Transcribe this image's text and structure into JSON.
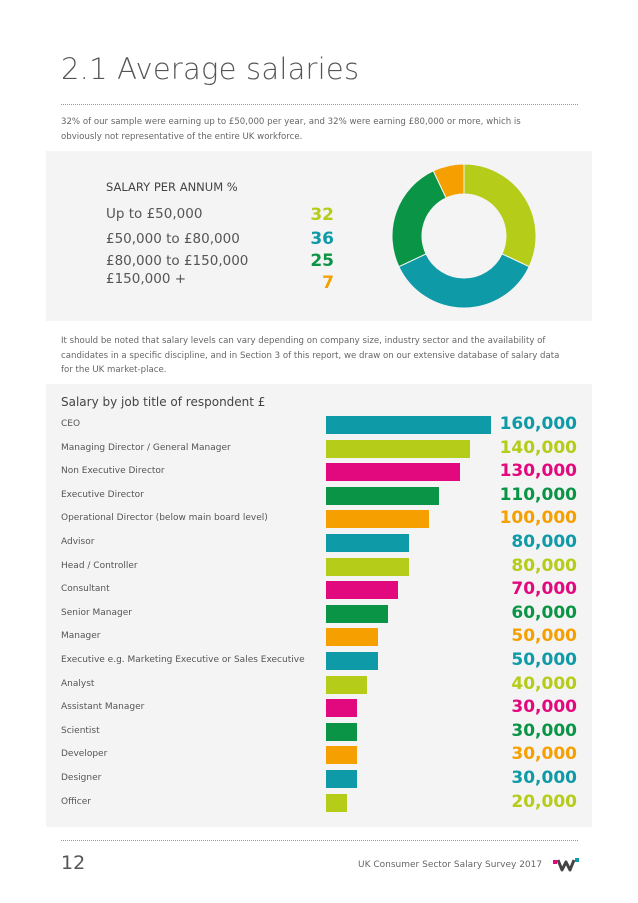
{
  "page": {
    "title": "2.1 Average salaries",
    "intro": "32% of our sample were earning up to £50,000 per year, and 32% were earning £80,000 or more, which is obviously not representative of the entire UK workforce.",
    "note": "It should be noted that salary levels can vary depending on company size, industry sector and the availability of candidates in a specific discipline, and in Section 3 of this report, we draw on our extensive database of salary data for the UK market-place."
  },
  "salary_summary": {
    "heading": "SALARY PER ANNUM %",
    "rows": [
      {
        "label": "Up to £50,000",
        "value": "32",
        "color": "#b5cc18"
      },
      {
        "label": "£50,000 to £80,000",
        "value": "36",
        "color": "#0e9aa7"
      },
      {
        "label": "£80,000 to £150,000",
        "value": "25",
        "color": "#0a9445"
      },
      {
        "label": "£150,000 +",
        "value": "7",
        "color": "#f5a000"
      }
    ]
  },
  "chart_data": [
    {
      "type": "pie",
      "categories": [
        "Up to £50,000",
        "£50,000 to £80,000",
        "£80,000 to £150,000",
        "£150,000 +"
      ],
      "values": [
        32,
        36,
        25,
        7
      ],
      "colors": [
        "#b5cc18",
        "#0e9aa7",
        "#0a9445",
        "#f5a000"
      ],
      "donut": true
    },
    {
      "type": "bar",
      "orientation": "horizontal",
      "title": "Salary by job title of respondent £",
      "categories": [
        "CEO",
        "Managing Director / General Manager",
        "Non Executive Director",
        "Executive Director",
        "Operational Director (below main board level)",
        "Advisor",
        "Head / Controller",
        "Consultant",
        "Senior Manager",
        "Manager",
        "Executive e.g. Marketing Executive or Sales Executive",
        "Analyst",
        "Assistant Manager",
        "Scientist",
        "Developer",
        "Designer",
        "Officer"
      ],
      "values": [
        160000,
        140000,
        130000,
        110000,
        100000,
        80000,
        80000,
        70000,
        60000,
        50000,
        50000,
        40000,
        30000,
        30000,
        30000,
        30000,
        20000
      ],
      "labels": [
        "160,000",
        "140,000",
        "130,000",
        "110,000",
        "100,000",
        "80,000",
        "80,000",
        "70,000",
        "60,000",
        "50,000",
        "50,000",
        "40,000",
        "30,000",
        "30,000",
        "30,000",
        "30,000",
        "20,000"
      ],
      "colors": [
        "#0e9aa7",
        "#b5cc18",
        "#e2097e",
        "#0a9445",
        "#f5a000",
        "#0e9aa7",
        "#b5cc18",
        "#e2097e",
        "#0a9445",
        "#f5a000",
        "#0e9aa7",
        "#b5cc18",
        "#e2097e",
        "#0a9445",
        "#f5a000",
        "#0e9aa7",
        "#b5cc18"
      ]
    }
  ],
  "footer": {
    "page_number": "12",
    "text": "UK Consumer Sector Salary Survey 2017",
    "logo_icon": "company-logo-icon"
  }
}
